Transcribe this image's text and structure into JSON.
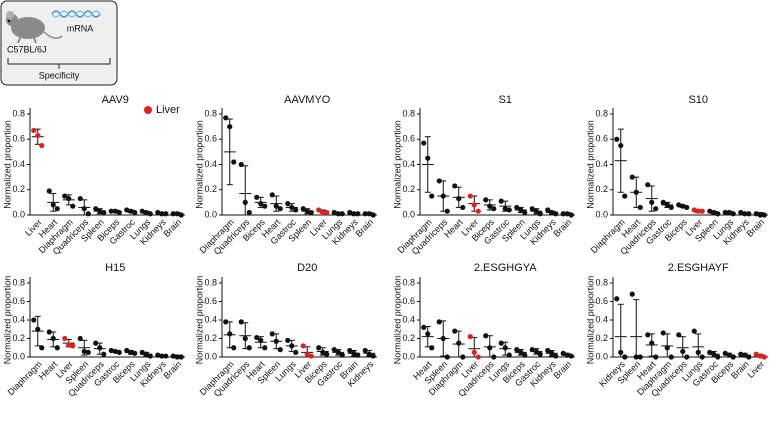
{
  "schematic": {
    "label": "mRNA",
    "strain": "C57BL/6J",
    "caption": "Specificity"
  },
  "legend": {
    "label": "Liver",
    "color": "#e02020"
  },
  "chart_data": [
    {
      "type": "dot",
      "title": "AAV9",
      "ylabel": "Normalized proportion",
      "color": "#111111",
      "categories": [
        "Liver",
        "Heart",
        "Diaphragm",
        "Quadriceps",
        "Spleen",
        "Biceps",
        "Gastroc",
        "Lungs",
        "Kidneys",
        "Brain"
      ],
      "points": [
        [
          0.67,
          0.63,
          0.55
        ],
        [
          0.19,
          0.08,
          0.05
        ],
        [
          0.15,
          0.13,
          0.07
        ],
        [
          0.13,
          0.05,
          0.01
        ],
        [
          0.05,
          0.03,
          0.02
        ],
        [
          0.03,
          0.03,
          0.02
        ],
        [
          0.04,
          0.03,
          0.02
        ],
        [
          0.03,
          0.02,
          0.01
        ],
        [
          0.02,
          0.01,
          0.01
        ],
        [
          0.01,
          0.01,
          0
        ]
      ],
      "means": [
        0.62,
        0.1,
        0.12,
        0.06,
        0.03,
        0.03,
        0.03,
        0.02,
        0.01,
        0.01
      ],
      "sd": [
        0.06,
        0.07,
        0.04,
        0.06,
        0.02,
        0.01,
        0.01,
        0.01,
        0.01,
        0.01
      ],
      "ylim": [
        0,
        0.8
      ],
      "yticks": [
        {
          "value": 0,
          "label": "0.0"
        },
        0.2,
        0.4,
        0.6,
        0.8
      ]
    },
    {
      "type": "dot",
      "title": "AAVMYO",
      "ylabel": "Normalized proportion",
      "color": "#111111",
      "categories": [
        "Diaphragm",
        "Quadriceps",
        "Biceps",
        "Heart",
        "Gastroc",
        "Spleen",
        "Liver",
        "Lungs",
        "Kidneys",
        "Brain"
      ],
      "points": [
        [
          0.77,
          0.7,
          0.42
        ],
        [
          0.4,
          0.1,
          0.02
        ],
        [
          0.14,
          0.09,
          0.07
        ],
        [
          0.16,
          0.07,
          0.05
        ],
        [
          0.09,
          0.06,
          0.04
        ],
        [
          0.05,
          0.03,
          0.02
        ],
        [
          0.04,
          0.02,
          0.02
        ],
        [
          0.02,
          0.01,
          0.01
        ],
        [
          0.02,
          0.01,
          0.01
        ],
        [
          0.01,
          0.01,
          0
        ]
      ],
      "means": [
        0.5,
        0.17,
        0.1,
        0.09,
        0.06,
        0.03,
        0.03,
        0.01,
        0.01,
        0.01
      ],
      "sd": [
        0.26,
        0.22,
        0.04,
        0.06,
        0.03,
        0.02,
        0.01,
        0.01,
        0.01,
        0.01
      ],
      "ylim": [
        0,
        0.8
      ],
      "yticks": [
        {
          "value": 0,
          "label": "0.0"
        },
        0.2,
        0.4,
        0.6,
        0.8
      ]
    },
    {
      "type": "dot",
      "title": "S1",
      "ylabel": "Normalized proportion",
      "color": "#111111",
      "categories": [
        "Diaphragm",
        "Quadriceps",
        "Heart",
        "Liver",
        "Biceps",
        "Gastroc",
        "Spleen",
        "Lungs",
        "Kidneys",
        "Brain"
      ],
      "points": [
        [
          0.57,
          0.45,
          0.15
        ],
        [
          0.27,
          0.15,
          0.03
        ],
        [
          0.23,
          0.13,
          0.06
        ],
        [
          0.15,
          0.08,
          0.03
        ],
        [
          0.12,
          0.07,
          0.05
        ],
        [
          0.11,
          0.05,
          0.04
        ],
        [
          0.06,
          0.04,
          0.02
        ],
        [
          0.05,
          0.03,
          0.01
        ],
        [
          0.04,
          0.02,
          0.01
        ],
        [
          0.01,
          0.01,
          0
        ]
      ],
      "means": [
        0.4,
        0.15,
        0.14,
        0.09,
        0.08,
        0.07,
        0.04,
        0.03,
        0.02,
        0.01
      ],
      "sd": [
        0.22,
        0.12,
        0.08,
        0.06,
        0.04,
        0.04,
        0.02,
        0.02,
        0.01,
        0.01
      ],
      "ylim": [
        0,
        0.8
      ],
      "yticks": [
        {
          "value": 0,
          "label": "0.0"
        },
        0.2,
        0.4,
        0.6,
        0.8
      ]
    },
    {
      "type": "dot",
      "title": "S10",
      "ylabel": "Normalized proportion",
      "color": "#111111",
      "categories": [
        "Diaphragm",
        "Heart",
        "Quadriceps",
        "Gastroc",
        "Biceps",
        "Liver",
        "Spleen",
        "Lungs",
        "Kidneys",
        "Brain"
      ],
      "points": [
        [
          0.6,
          0.55,
          0.15
        ],
        [
          0.3,
          0.18,
          0.06
        ],
        [
          0.24,
          0.1,
          0.05
        ],
        [
          0.1,
          0.08,
          0.06
        ],
        [
          0.08,
          0.07,
          0.06
        ],
        [
          0.04,
          0.03,
          0.03
        ],
        [
          0.03,
          0.02,
          0.01
        ],
        [
          0.02,
          0.02,
          0.01
        ],
        [
          0.02,
          0.01,
          0.01
        ],
        [
          0.01,
          0,
          0
        ]
      ],
      "means": [
        0.43,
        0.18,
        0.13,
        0.08,
        0.07,
        0.03,
        0.02,
        0.02,
        0.01,
        0.01
      ],
      "sd": [
        0.25,
        0.12,
        0.1,
        0.02,
        0.01,
        0.01,
        0.01,
        0.01,
        0.01,
        0.01
      ],
      "ylim": [
        0,
        0.8
      ],
      "yticks": [
        {
          "value": 0,
          "label": "0.0"
        },
        0.2,
        0.4,
        0.6,
        0.8
      ]
    },
    {
      "type": "dot",
      "title": "H15",
      "ylabel": "Normalized proportion",
      "color": "#111111",
      "categories": [
        "Diaphragm",
        "Heart",
        "Liver",
        "Spleen",
        "Quadriceps",
        "Gastroc",
        "Biceps",
        "Lungs",
        "Kidneys",
        "Brain"
      ],
      "points": [
        [
          0.4,
          0.3,
          0.1
        ],
        [
          0.27,
          0.2,
          0.1
        ],
        [
          0.2,
          0.13,
          0.12
        ],
        [
          0.2,
          0.06,
          0.05
        ],
        [
          0.15,
          0.1,
          0.03
        ],
        [
          0.07,
          0.06,
          0.05
        ],
        [
          0.07,
          0.05,
          0.04
        ],
        [
          0.05,
          0.03,
          0.01
        ],
        [
          0.02,
          0.01,
          0.01
        ],
        [
          0.01,
          0,
          0
        ]
      ],
      "means": [
        0.28,
        0.19,
        0.15,
        0.1,
        0.09,
        0.06,
        0.05,
        0.03,
        0.01,
        0.01
      ],
      "sd": [
        0.16,
        0.08,
        0.04,
        0.08,
        0.06,
        0.01,
        0.02,
        0.02,
        0.01,
        0.01
      ],
      "ylim": [
        0,
        0.8
      ],
      "yticks": [
        {
          "value": 0,
          "label": "0.0"
        },
        0.2,
        0.4,
        0.6,
        0.8
      ]
    },
    {
      "type": "dot",
      "title": "D20",
      "ylabel": "Normalized proportion",
      "color": "#111111",
      "categories": [
        "Diaphragm",
        "Quadriceps",
        "Heart",
        "Spleen",
        "Lungs",
        "Liver",
        "Biceps",
        "Gastroc",
        "Brain",
        "Kidneys"
      ],
      "points": [
        [
          0.38,
          0.25,
          0.1
        ],
        [
          0.38,
          0.2,
          0.1
        ],
        [
          0.21,
          0.18,
          0.1
        ],
        [
          0.25,
          0.17,
          0.08
        ],
        [
          0.18,
          0.12,
          0.05
        ],
        [
          0.12,
          0.03,
          0.01
        ],
        [
          0.1,
          0.05,
          0.03
        ],
        [
          0.08,
          0.05,
          0.02
        ],
        [
          0.07,
          0.04,
          0.02
        ],
        [
          0.07,
          0.03,
          0.01
        ]
      ],
      "means": [
        0.24,
        0.23,
        0.16,
        0.17,
        0.12,
        0.05,
        0.06,
        0.05,
        0.04,
        0.04
      ],
      "sd": [
        0.14,
        0.14,
        0.06,
        0.08,
        0.06,
        0.06,
        0.04,
        0.03,
        0.03,
        0.03
      ],
      "ylim": [
        0,
        0.8
      ],
      "yticks": [
        {
          "value": 0,
          "label": "0.0"
        },
        0.2,
        0.4,
        0.6,
        0.8
      ]
    },
    {
      "type": "dot",
      "title": "2.ESGHGYA",
      "ylabel": "Normalized proportion",
      "color": "#111111",
      "categories": [
        "Heart",
        "Spleen",
        "Diaphragm",
        "Liver",
        "Quadriceps",
        "Lungs",
        "Biceps",
        "Gastroc",
        "Kidneys",
        "Brain"
      ],
      "points": [
        [
          0.32,
          0.25,
          0.1
        ],
        [
          0.38,
          0.2,
          0
        ],
        [
          0.28,
          0.15,
          0
        ],
        [
          0.22,
          0.05,
          0
        ],
        [
          0.23,
          0.1,
          0
        ],
        [
          0.15,
          0.1,
          0.02
        ],
        [
          0.08,
          0.05,
          0.02
        ],
        [
          0.08,
          0.06,
          0.03
        ],
        [
          0.07,
          0.04,
          0.01
        ],
        [
          0.04,
          0.02,
          0.01
        ]
      ],
      "means": [
        0.22,
        0.2,
        0.14,
        0.09,
        0.11,
        0.09,
        0.05,
        0.06,
        0.04,
        0.02
      ],
      "sd": [
        0.11,
        0.19,
        0.14,
        0.12,
        0.12,
        0.07,
        0.03,
        0.03,
        0.03,
        0.02
      ],
      "ylim": [
        0,
        0.8
      ],
      "yticks": [
        {
          "value": 0,
          "label": "0.0"
        },
        0.2,
        0.4,
        0.6,
        0.8
      ]
    },
    {
      "type": "dot",
      "title": "2.ESGHAYF",
      "ylabel": "Normalized proportion",
      "color": "#111111",
      "categories": [
        "Kidneys",
        "Spleen",
        "Heart",
        "Diaphragm",
        "Quadriceps",
        "Lungs",
        "Gastroc",
        "Biceps",
        "Brain",
        "Liver"
      ],
      "points": [
        [
          0.63,
          0.05,
          0
        ],
        [
          0.68,
          0,
          0
        ],
        [
          0.24,
          0.15,
          0
        ],
        [
          0.26,
          0.1,
          0
        ],
        [
          0.24,
          0.06,
          0
        ],
        [
          0.28,
          0.05,
          0
        ],
        [
          0.05,
          0.03,
          0
        ],
        [
          0.04,
          0.02,
          0
        ],
        [
          0.03,
          0.02,
          0
        ],
        [
          0.03,
          0.01,
          0
        ]
      ],
      "means": [
        0.22,
        0.22,
        0.13,
        0.12,
        0.1,
        0.11,
        0.03,
        0.02,
        0.02,
        0.01
      ],
      "sd": [
        0.35,
        0.4,
        0.12,
        0.13,
        0.12,
        0.14,
        0.03,
        0.02,
        0.02,
        0.02
      ],
      "ylim": [
        0,
        0.8
      ],
      "yticks": [
        {
          "value": 0,
          "label": "0.0"
        },
        0.2,
        0.4,
        0.6,
        0.8
      ]
    }
  ]
}
